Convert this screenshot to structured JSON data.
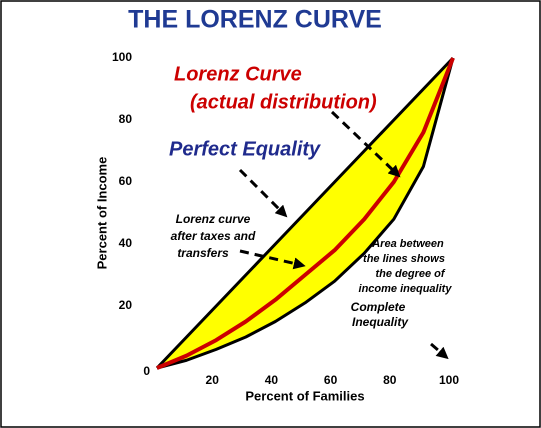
{
  "chart_data": {
    "type": "line",
    "title": "THE LORENZ CURVE",
    "x_label": "Percent of Families",
    "y_label": "Percent of Income",
    "x": [
      0,
      10,
      20,
      30,
      40,
      50,
      60,
      70,
      80,
      90,
      100
    ],
    "series": [
      {
        "name": "Perfect Equality",
        "color": "#000000",
        "values": [
          0,
          10,
          20,
          30,
          40,
          50,
          60,
          70,
          80,
          90,
          100
        ]
      },
      {
        "name": "Lorenz Curve (actual distribution)",
        "color": "#cc0000",
        "values": [
          0,
          4,
          9,
          15,
          22,
          30,
          38,
          48,
          60,
          76,
          100
        ]
      },
      {
        "name": "Lorenz curve after taxes and transfers",
        "color": "#000000",
        "values": [
          0,
          2.5,
          6,
          10,
          15,
          21,
          28,
          37,
          48,
          65,
          100
        ]
      }
    ],
    "fill_color": "#ffff00",
    "xlim": [
      0,
      100
    ],
    "ylim": [
      0,
      100
    ],
    "xticks": [
      20,
      40,
      60,
      80,
      100
    ],
    "yticks": [
      0,
      20,
      40,
      60,
      80,
      100
    ],
    "grid": false,
    "annotations": {
      "lorenz_1": "Lorenz Curve",
      "lorenz_2": "(actual distribution)",
      "equality": "Perfect Equality",
      "after_1": "Lorenz curve",
      "after_2": "after taxes and",
      "after_3": "transfers",
      "area_1": "Area between",
      "area_2": "the lines shows",
      "area_3": "the degree of",
      "area_4": "income inequality",
      "complete_1": "Complete",
      "complete_2": "Inequality"
    }
  }
}
